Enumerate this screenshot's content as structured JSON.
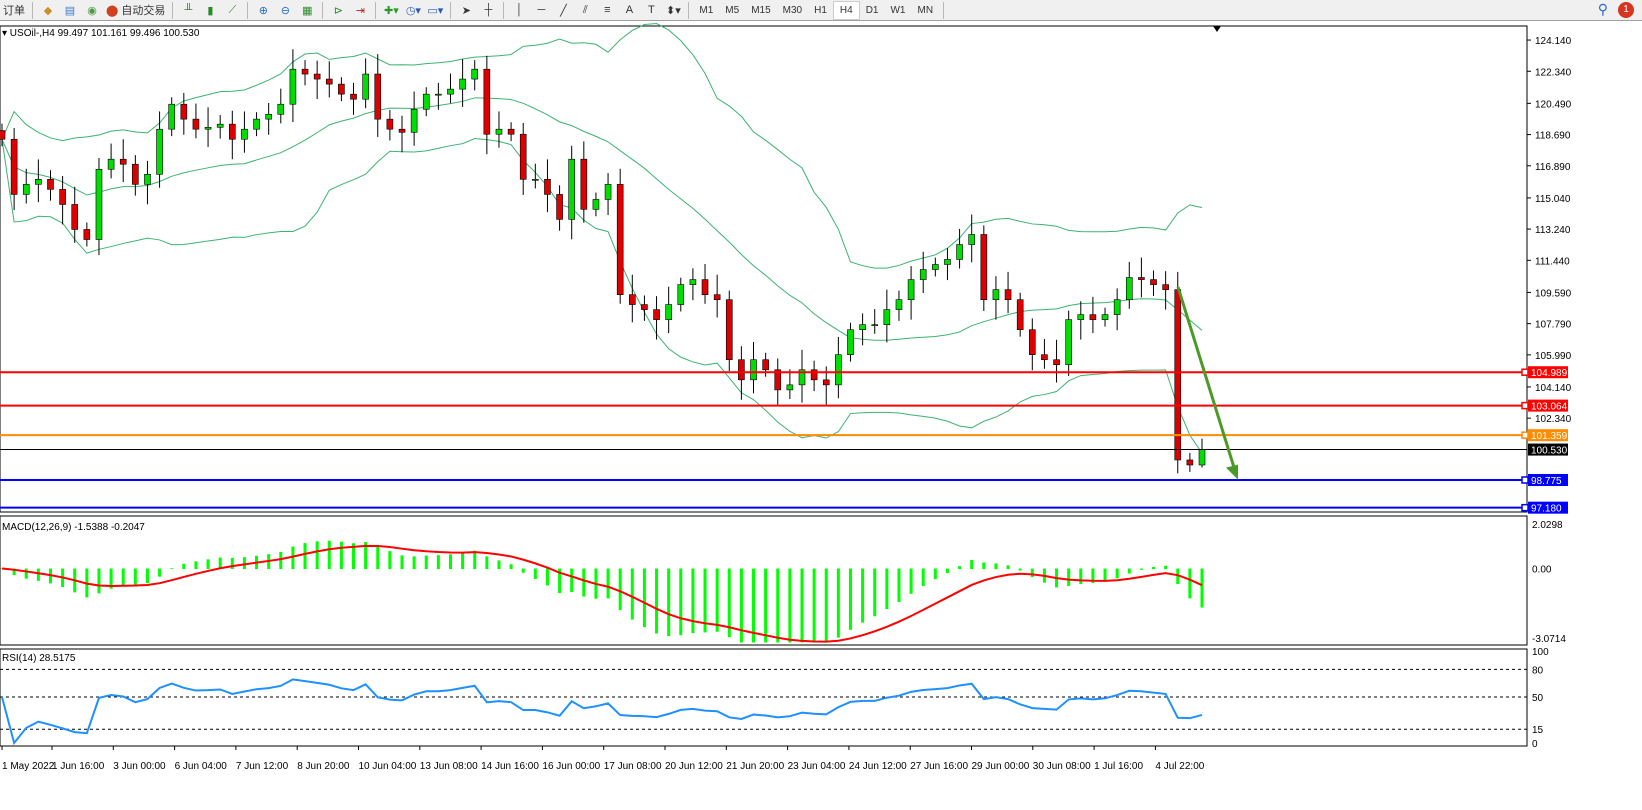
{
  "toolbar": {
    "order_label": "订单",
    "auto_trading_label": "自动交易",
    "icons": [
      "experts-icon",
      "data-window-icon",
      "signals-icon",
      "bar-chart-icon",
      "candlestick-icon",
      "line-chart-icon",
      "zoom-in-icon",
      "zoom-out-icon",
      "tile-windows-icon",
      "auto-scroll-icon",
      "chart-shift-icon",
      "indicators-icon",
      "periods-icon",
      "templates-icon",
      "cursor-icon",
      "crosshair-icon",
      "vertical-line-icon",
      "horizontal-line-icon",
      "trendline-icon",
      "equidistant-channel-icon",
      "fibonacci-icon",
      "text-icon",
      "text-label-icon",
      "arrows-icon"
    ],
    "timeframes": [
      "M1",
      "M5",
      "M15",
      "M30",
      "H1",
      "H4",
      "D1",
      "W1",
      "MN"
    ],
    "active_timeframe": "H4",
    "notification_count": "1"
  },
  "chart_info": {
    "symbol_line": "USOil-,H4  99.497 101.161 99.496 100.530"
  },
  "chart_data": {
    "type": "candlestick",
    "symbol": "USOil-",
    "timeframe": "H4",
    "ohlc_last": {
      "open": 99.497,
      "high": 101.161,
      "low": 99.496,
      "close": 100.53
    },
    "closes": [
      118.42,
      115.24,
      115.82,
      116.11,
      115.53,
      114.66,
      113.22,
      112.64,
      116.69,
      117.27,
      116.98,
      115.82,
      116.4,
      119.0,
      120.44,
      119.58,
      119.0,
      119.11,
      119.29,
      118.42,
      119.0,
      119.58,
      119.86,
      120.44,
      122.46,
      122.18,
      121.89,
      121.6,
      121.02,
      120.73,
      122.18,
      119.58,
      119.0,
      118.82,
      120.15,
      121.02,
      121.02,
      121.31,
      121.89,
      122.46,
      118.71,
      119.0,
      118.71,
      116.11,
      116.11,
      115.24,
      113.8,
      117.27,
      114.38,
      114.95,
      115.82,
      109.46,
      108.89,
      108.6,
      108.02,
      108.89,
      110.04,
      110.33,
      109.46,
      109.17,
      105.71,
      104.55,
      105.71,
      105.13,
      103.97,
      104.26,
      105.13,
      104.55,
      104.26,
      106.0,
      107.44,
      107.73,
      107.73,
      108.6,
      109.17,
      110.33,
      110.91,
      111.2,
      111.49,
      112.35,
      112.93,
      109.17,
      109.75,
      109.17,
      107.44,
      106.0,
      105.71,
      105.42,
      108.02,
      108.31,
      108.02,
      108.31,
      109.17,
      110.45,
      110.33,
      110.04,
      109.75,
      99.93,
      99.64,
      100.53
    ],
    "price_ticks": [
      "124.140",
      "122.340",
      "120.490",
      "118.690",
      "116.890",
      "115.040",
      "113.240",
      "111.440",
      "109.590",
      "107.790",
      "105.990",
      "104.140",
      "102.340"
    ],
    "yrange": [
      96.93,
      124.95
    ],
    "horizontal_lines": [
      {
        "price": 104.989,
        "label": "104.989",
        "color": "#ff0000"
      },
      {
        "price": 103.064,
        "label": "103.064",
        "color": "#ff0000"
      },
      {
        "price": 101.359,
        "label": "101.359",
        "color": "#ff8c00"
      },
      {
        "price": 100.53,
        "label": "100.530",
        "color": "#000000"
      },
      {
        "price": 98.775,
        "label": "98.775",
        "color": "#0000ff"
      },
      {
        "price": 97.18,
        "label": "97.180",
        "color": "#0000ff"
      }
    ],
    "bollinger": {
      "period": 20,
      "deviation": 2,
      "color": "#3cb371"
    },
    "arrow": {
      "from_price": 109.9,
      "to_price": 98.8,
      "color": "#4a9a28"
    },
    "candle_colors": {
      "bull": "#00dd00",
      "bear": "#dd0000"
    },
    "macd": {
      "label": "MACD(12,26,9) -1.5388 -0.2047",
      "ticks": [
        "2.0298",
        "0.00",
        "-3.0714"
      ],
      "range": [
        -3.0714,
        2.0298
      ],
      "hist_color": "#00ff00",
      "signal_color": "#ff0000"
    },
    "rsi": {
      "label": "RSI(14) 28.5175",
      "ticks": [
        "100",
        "80",
        "50",
        "15",
        "0"
      ],
      "levels": [
        80,
        50,
        15
      ],
      "color": "#1e90ff"
    },
    "time_labels": [
      "1 May 2022",
      "1 Jun 16:00",
      "3 Jun 00:00",
      "6 Jun 04:00",
      "7 Jun 12:00",
      "8 Jun 20:00",
      "10 Jun 04:00",
      "13 Jun 08:00",
      "14 Jun 16:00",
      "16 Jun 00:00",
      "17 Jun 08:00",
      "20 Jun 12:00",
      "21 Jun 20:00",
      "23 Jun 04:00",
      "24 Jun 12:00",
      "27 Jun 16:00",
      "29 Jun 00:00",
      "30 Jun 08:00",
      "1 Jul 16:00",
      "4 Jul 22:00"
    ]
  }
}
